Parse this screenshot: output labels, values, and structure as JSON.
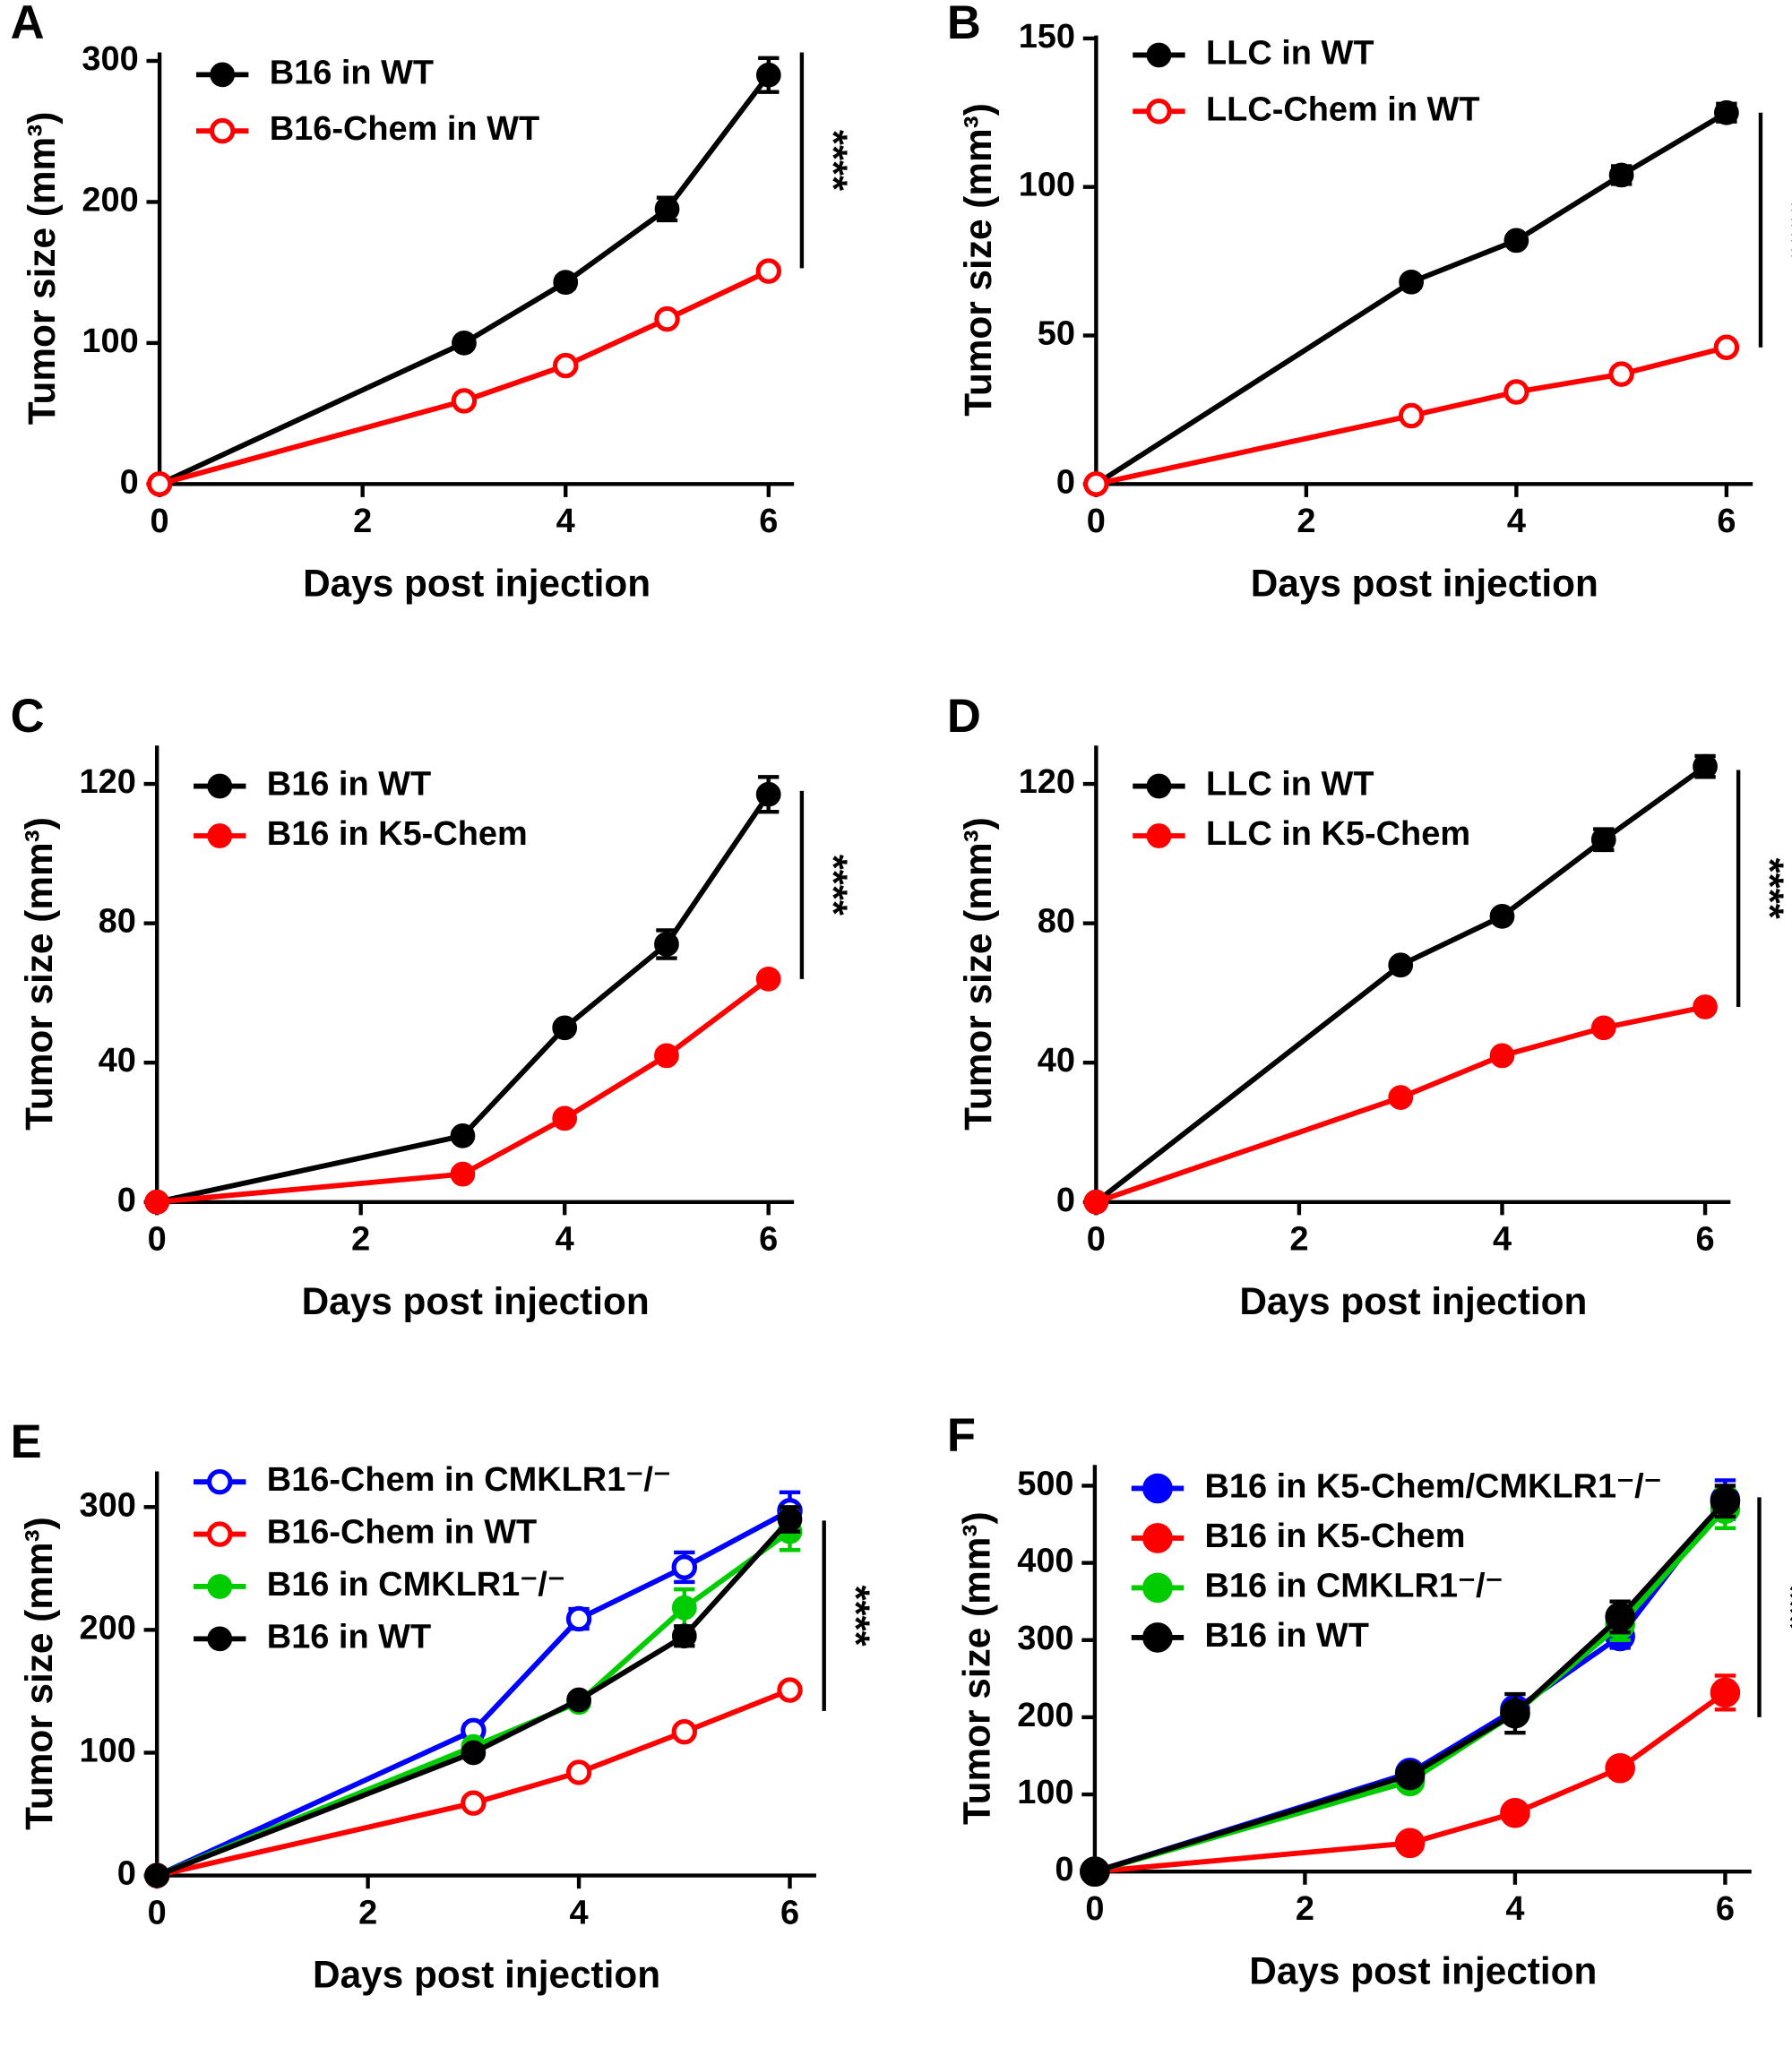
{
  "chart_data": [
    {
      "type": "line",
      "label": "A",
      "x_label": "Days post injection",
      "y_label": "Tumor size (mm³)",
      "x": [
        0,
        3,
        4,
        5,
        6
      ],
      "xlim": [
        0,
        6.25
      ],
      "xticks": [
        0,
        2,
        4,
        6
      ],
      "ylim": [
        0,
        306
      ],
      "yticks": [
        0,
        100,
        200,
        300
      ],
      "annotation": "****",
      "annotation_range": [
        153,
        306
      ],
      "series": [
        {
          "name": "B16 in WT",
          "color": "#000000",
          "marker": "filled",
          "values": [
            0,
            100,
            143,
            195,
            290
          ],
          "errors": [
            0,
            3,
            4,
            8,
            12
          ]
        },
        {
          "name": "B16-Chem in WT",
          "color": "#ff0000",
          "marker": "open",
          "values": [
            0,
            59,
            84,
            117,
            151
          ],
          "errors": [
            0,
            2,
            2,
            2,
            2
          ]
        }
      ]
    },
    {
      "type": "line",
      "label": "B",
      "x_label": "Days post injection",
      "y_label": "Tumor size (mm³)",
      "x": [
        0,
        3,
        4,
        5,
        6
      ],
      "xlim": [
        0,
        6.25
      ],
      "xticks": [
        0,
        2,
        4,
        6
      ],
      "ylim": [
        0,
        151
      ],
      "yticks": [
        0,
        50,
        100,
        150
      ],
      "annotation": "****",
      "annotation_range": [
        46,
        125
      ],
      "series": [
        {
          "name": "LLC in WT",
          "color": "#000000",
          "marker": "filled",
          "values": [
            0,
            68,
            82,
            104,
            125
          ],
          "errors": [
            0,
            1,
            1,
            3,
            3
          ]
        },
        {
          "name": "LLC-Chem in WT",
          "color": "#ff0000",
          "marker": "open",
          "values": [
            0,
            23,
            31,
            37,
            46
          ],
          "errors": [
            0,
            1,
            1,
            1,
            1
          ]
        }
      ]
    },
    {
      "type": "line",
      "label": "C",
      "x_label": "Days post injection",
      "y_label": "Tumor size (mm³)",
      "x": [
        0,
        3,
        4,
        5,
        6
      ],
      "xlim": [
        0,
        6.25
      ],
      "xticks": [
        0,
        2,
        4,
        6
      ],
      "ylim": [
        0,
        131
      ],
      "yticks": [
        0,
        40,
        80,
        120
      ],
      "annotation": "****",
      "annotation_range": [
        64,
        118
      ],
      "series": [
        {
          "name": "B16 in WT",
          "color": "#000000",
          "marker": "filled",
          "values": [
            0,
            19,
            50,
            74,
            117
          ],
          "errors": [
            0,
            1,
            1,
            4,
            5
          ]
        },
        {
          "name": "B16 in K5-Chem",
          "color": "#ff0000",
          "marker": "filled",
          "values": [
            0,
            8,
            24,
            42,
            64
          ],
          "errors": [
            0,
            1,
            1,
            1,
            1
          ]
        }
      ]
    },
    {
      "type": "line",
      "label": "D",
      "x_label": "Days post injection",
      "y_label": "Tumor size (mm³)",
      "x": [
        0,
        3,
        4,
        5,
        6
      ],
      "xlim": [
        0,
        6.25
      ],
      "xticks": [
        0,
        2,
        4,
        6
      ],
      "ylim": [
        0,
        131
      ],
      "yticks": [
        0,
        40,
        80,
        120
      ],
      "annotation": "****",
      "annotation_range": [
        56,
        124
      ],
      "series": [
        {
          "name": "LLC in WT",
          "color": "#000000",
          "marker": "filled",
          "values": [
            0,
            68,
            82,
            104,
            125
          ],
          "errors": [
            0,
            1,
            1,
            3,
            3
          ]
        },
        {
          "name": "LLC in K5-Chem",
          "color": "#ff0000",
          "marker": "filled",
          "values": [
            0,
            30,
            42,
            50,
            56
          ],
          "errors": [
            0,
            1,
            1,
            1,
            1
          ]
        }
      ]
    },
    {
      "type": "line",
      "label": "E",
      "x_label": "Days post injection",
      "y_label": "Tumor size (mm³)",
      "x": [
        0,
        3,
        4,
        5,
        6
      ],
      "xlim": [
        0,
        6.25
      ],
      "xticks": [
        0,
        2,
        4,
        6
      ],
      "ylim": [
        0,
        329
      ],
      "yticks": [
        0,
        100,
        200,
        300
      ],
      "annotation": "****",
      "annotation_range": [
        134,
        289
      ],
      "series": [
        {
          "name": "B16-Chem in CMKLR1⁻/⁻",
          "color": "#0000ff",
          "marker": "open",
          "values": [
            0,
            118,
            209,
            251,
            297
          ],
          "errors": [
            0,
            5,
            8,
            12,
            15
          ]
        },
        {
          "name": "B16-Chem in WT",
          "color": "#ff0000",
          "marker": "open",
          "values": [
            0,
            59,
            84,
            117,
            151
          ],
          "errors": [
            0,
            2,
            2,
            2,
            2
          ]
        },
        {
          "name": "B16 in CMKLR1⁻/⁻",
          "color": "#00cc00",
          "marker": "filled",
          "values": [
            0,
            105,
            141,
            218,
            280
          ],
          "errors": [
            0,
            4,
            4,
            15,
            15
          ]
        },
        {
          "name": "B16 in WT",
          "color": "#000000",
          "marker": "filled",
          "values": [
            0,
            100,
            143,
            195,
            290
          ],
          "errors": [
            0,
            3,
            4,
            8,
            10
          ]
        }
      ]
    },
    {
      "type": "line",
      "label": "F",
      "x_label": "Days post injection",
      "y_label": "Tumor size (mm³)",
      "x": [
        0,
        3,
        4,
        5,
        6
      ],
      "xlim": [
        0,
        6.25
      ],
      "xticks": [
        0,
        2,
        4,
        6
      ],
      "ylim": [
        0,
        527
      ],
      "yticks": [
        0,
        100,
        200,
        300,
        400,
        500
      ],
      "annotation": "***",
      "annotation_range": [
        200,
        485
      ],
      "series": [
        {
          "name": "B16 in K5-Chem/CMKLR1⁻/⁻",
          "color": "#0000ff",
          "marker": "filled",
          "values": [
            0,
            128,
            210,
            305,
            482
          ],
          "errors": [
            0,
            8,
            10,
            15,
            25
          ]
        },
        {
          "name": "B16 in K5-Chem",
          "color": "#ff0000",
          "marker": "filled",
          "values": [
            0,
            37,
            76,
            134,
            232
          ],
          "errors": [
            0,
            5,
            6,
            8,
            22
          ]
        },
        {
          "name": "B16 in CMKLR1⁻/⁻",
          "color": "#00cc00",
          "marker": "filled",
          "values": [
            0,
            117,
            205,
            320,
            470
          ],
          "errors": [
            0,
            6,
            10,
            20,
            25
          ]
        },
        {
          "name": "B16 in WT",
          "color": "#000000",
          "marker": "filled",
          "values": [
            0,
            125,
            205,
            330,
            480
          ],
          "errors": [
            0,
            8,
            25,
            20,
            20
          ]
        }
      ]
    }
  ]
}
